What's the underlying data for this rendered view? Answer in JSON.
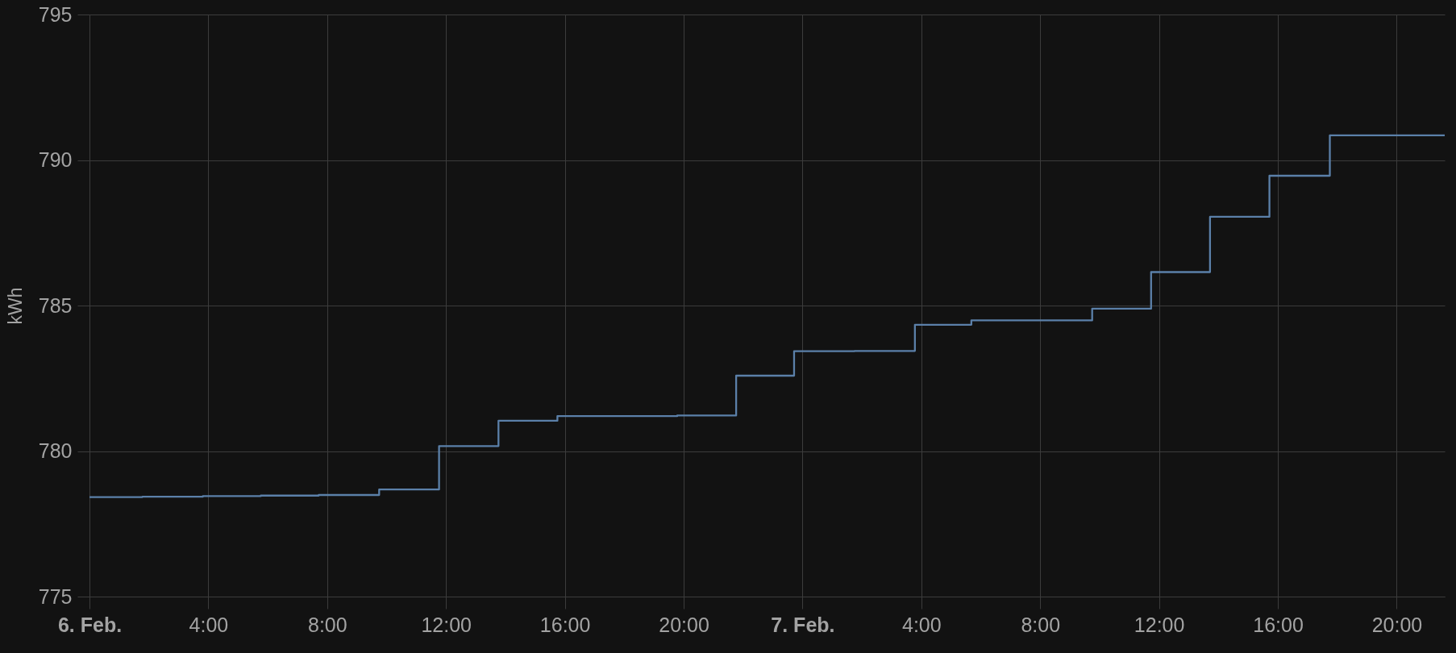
{
  "chart_data": {
    "type": "step",
    "ylabel": "kWh",
    "x": [
      "--02-06T00:00",
      "--02-06T01:47",
      "--02-06T03:49",
      "--02-06T05:46",
      "--02-06T07:43",
      "--02-06T09:45",
      "--02-06T11:46",
      "--02-06T13:46",
      "--02-06T15:45",
      "--02-06T19:47",
      "--02-06T21:46",
      "--02-06T23:43",
      "--02-07T01:45",
      "--02-07T03:47",
      "--02-07T05:41",
      "--02-07T09:45",
      "--02-07T11:44",
      "--02-07T13:43",
      "--02-07T15:43",
      "--02-07T17:45",
      "--02-07T21:37"
    ],
    "series": [
      {
        "color": "#5b80a9",
        "values": [
          778.42,
          778.43,
          778.45,
          778.47,
          778.49,
          778.68,
          780.17,
          781.04,
          781.2,
          781.22,
          782.59,
          783.43,
          783.44,
          784.34,
          784.49,
          784.89,
          786.15,
          788.05,
          789.46,
          790.85,
          790.85
        ]
      }
    ],
    "xlim": [
      "--02-06T00:00",
      "--02-07T21:37"
    ],
    "xticks": [
      {
        "value": "--02-06T00:00",
        "label": "6. Feb."
      },
      {
        "value": "--02-06T04:00",
        "label": "4:00"
      },
      {
        "value": "--02-06T08:00",
        "label": "8:00"
      },
      {
        "value": "--02-06T12:00",
        "label": "12:00"
      },
      {
        "value": "--02-06T16:00",
        "label": "16:00"
      },
      {
        "value": "--02-06T20:00",
        "label": "20:00"
      },
      {
        "value": "--02-07T00:00",
        "label": "7. Feb."
      },
      {
        "value": "--02-07T04:00",
        "label": "4:00"
      },
      {
        "value": "--02-07T08:00",
        "label": "8:00"
      },
      {
        "value": "--02-07T12:00",
        "label": "12:00"
      },
      {
        "value": "--02-07T16:00",
        "label": "16:00"
      },
      {
        "value": "--02-07T20:00",
        "label": "20:00"
      }
    ],
    "ylim": [
      775,
      795
    ],
    "yticks": [
      775,
      780,
      785,
      790,
      795
    ],
    "grid": true
  }
}
